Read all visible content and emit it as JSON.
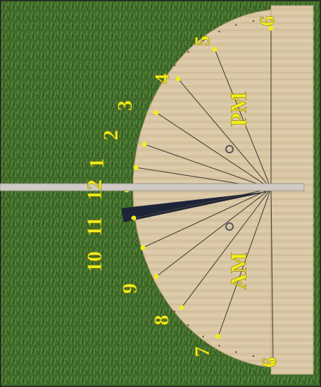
{
  "dial": {
    "hour_labels": [
      "6",
      "5",
      "4",
      "3",
      "2",
      "1",
      "12",
      "11",
      "10",
      "9",
      "8",
      "7",
      "6"
    ],
    "pm_label": "PM",
    "am_label": "AM"
  }
}
